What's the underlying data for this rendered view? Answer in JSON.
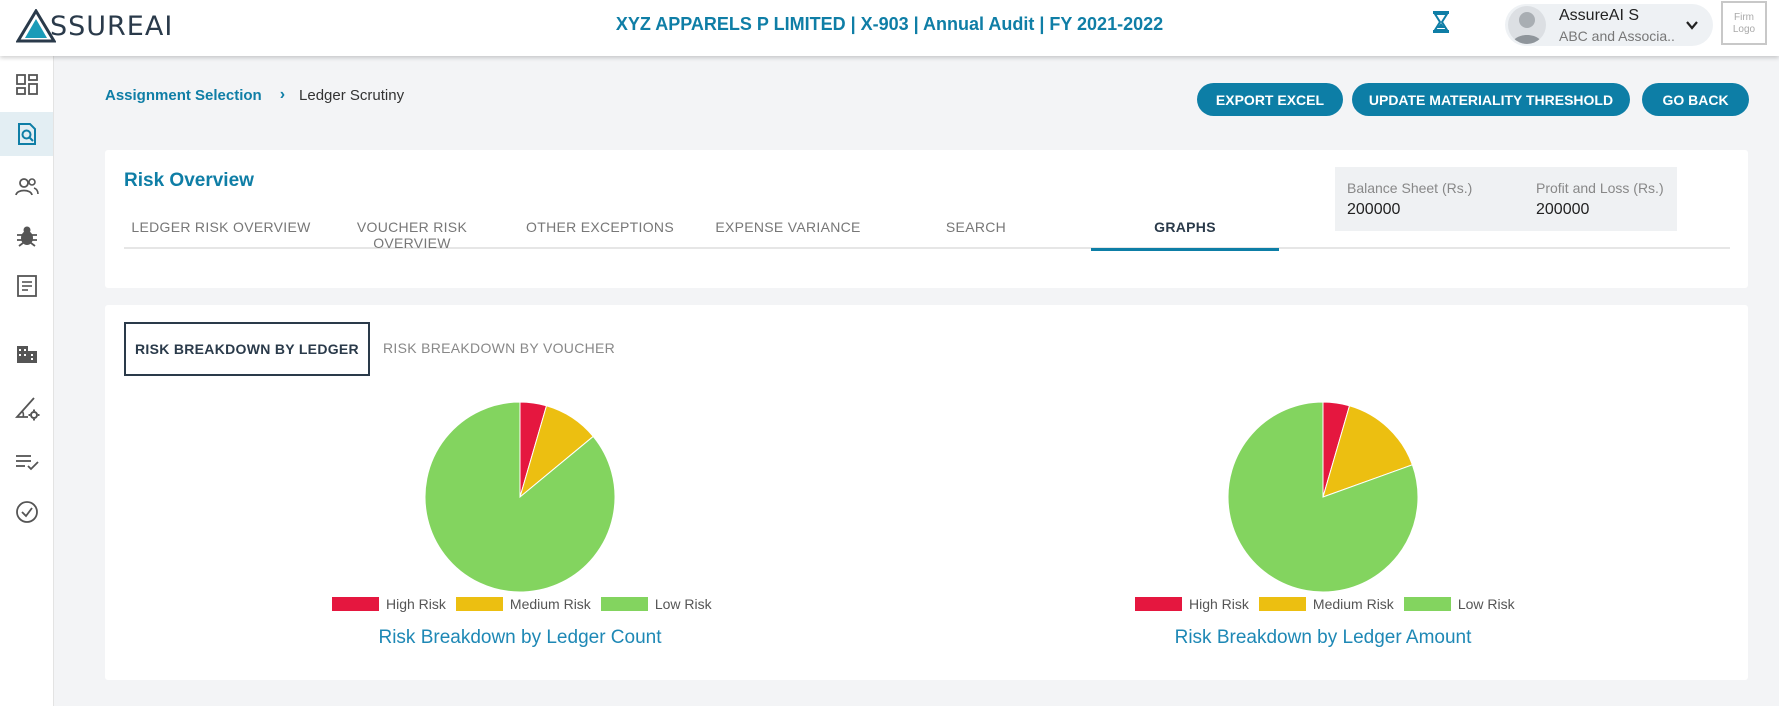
{
  "header": {
    "logo_text": "SSUREAI",
    "title": "XYZ APPARELS P LIMITED | X-903 | Annual Audit | FY 2021-2022",
    "user_name": "AssureAI S",
    "user_org": "ABC and Associa..",
    "firm_logo": "Firm Logo",
    "accent": "#0f7ea6"
  },
  "sidebar": {
    "items": [
      {
        "icon": "dashboard-icon"
      },
      {
        "icon": "document-search-icon",
        "active": true
      },
      {
        "icon": "users-icon"
      },
      {
        "icon": "bug-icon"
      },
      {
        "icon": "report-icon"
      },
      {
        "icon": "building-icon"
      },
      {
        "icon": "settings-triangle-icon"
      },
      {
        "icon": "checklist-icon"
      },
      {
        "icon": "check-circle-icon"
      }
    ]
  },
  "breadcrumb": {
    "parent": "Assignment Selection",
    "current": "Ledger Scrutiny"
  },
  "actions": {
    "export": "EXPORT EXCEL",
    "update": "UPDATE MATERIALITY THRESHOLD",
    "back": "GO BACK"
  },
  "overview": {
    "title": "Risk Overview",
    "tabs": [
      "LEDGER RISK OVERVIEW",
      "VOUCHER RISK OVERVIEW",
      "OTHER EXCEPTIONS",
      "EXPENSE VARIANCE",
      "SEARCH",
      "GRAPHS"
    ],
    "active_tab": "GRAPHS",
    "thresholds": {
      "bs_label": "Balance Sheet (Rs.)",
      "bs_value": "200000",
      "pl_label": "Profit and Loss (Rs.)",
      "pl_value": "200000"
    }
  },
  "graphs": {
    "subtab_active": "RISK BREAKDOWN BY LEDGER",
    "subtab_other": "RISK BREAKDOWN BY VOUCHER"
  },
  "chart_data": [
    {
      "type": "pie",
      "title": "Risk Breakdown by Ledger Count",
      "categories": [
        "High Risk",
        "Medium Risk",
        "Low Risk"
      ],
      "values": [
        4.5,
        9.5,
        86
      ],
      "colors": [
        "#e5173f",
        "#ecbf11",
        "#83d45f"
      ],
      "legend_placement": "bottom"
    },
    {
      "type": "pie",
      "title": "Risk Breakdown by Ledger Amount",
      "categories": [
        "High Risk",
        "Medium Risk",
        "Low Risk"
      ],
      "values": [
        4.5,
        15,
        80.5
      ],
      "colors": [
        "#e5173f",
        "#ecbf11",
        "#83d45f"
      ],
      "legend_placement": "bottom"
    }
  ]
}
